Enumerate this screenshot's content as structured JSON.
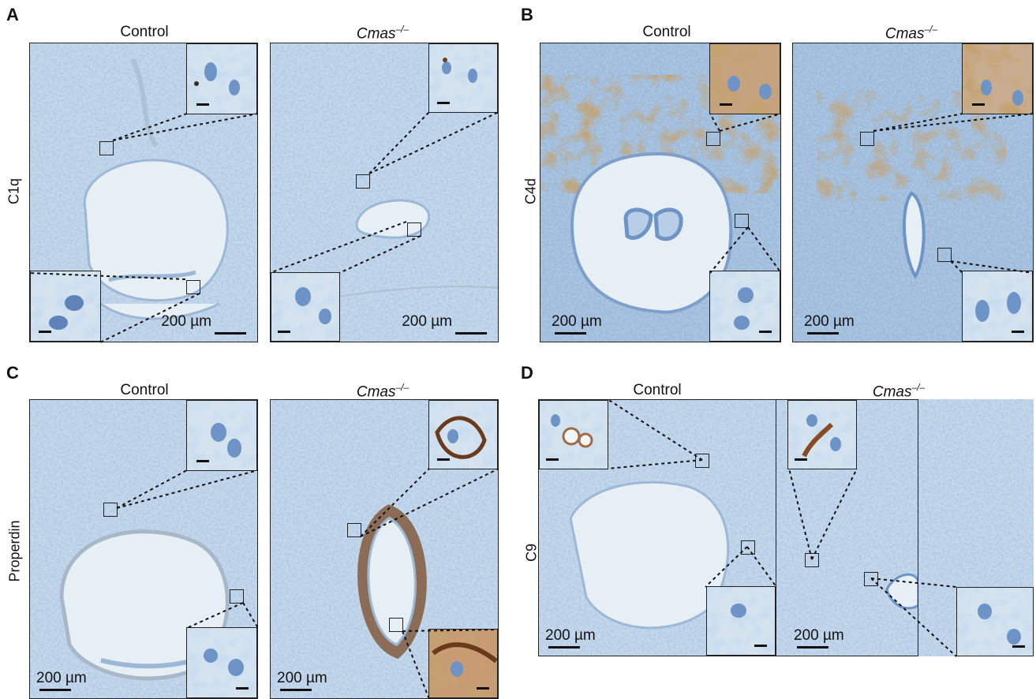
{
  "panels": {
    "A": {
      "letter": "A",
      "row_label": "C1q",
      "left_title": "Control",
      "right_title": "Cmas",
      "right_sup": "–/–"
    },
    "B": {
      "letter": "B",
      "row_label": "C4d",
      "left_title": "Control",
      "right_title": "Cmas",
      "right_sup": "–/–"
    },
    "C": {
      "letter": "C",
      "row_label": "Properdin",
      "left_title": "Control",
      "right_title": "Cmas",
      "right_sup": "–/–"
    },
    "D": {
      "letter": "D",
      "row_label": "C9",
      "left_title": "Control",
      "right_title": "Cmas",
      "right_sup": "–/–"
    }
  },
  "scale_bar_label": "200 µm",
  "colors": {
    "tissue_base": "#c6d9ea",
    "lumen": "#e6f0f4",
    "nuclei": "#6e93c6",
    "dab_brown": "#8b5a2b",
    "frame": "#222222"
  }
}
